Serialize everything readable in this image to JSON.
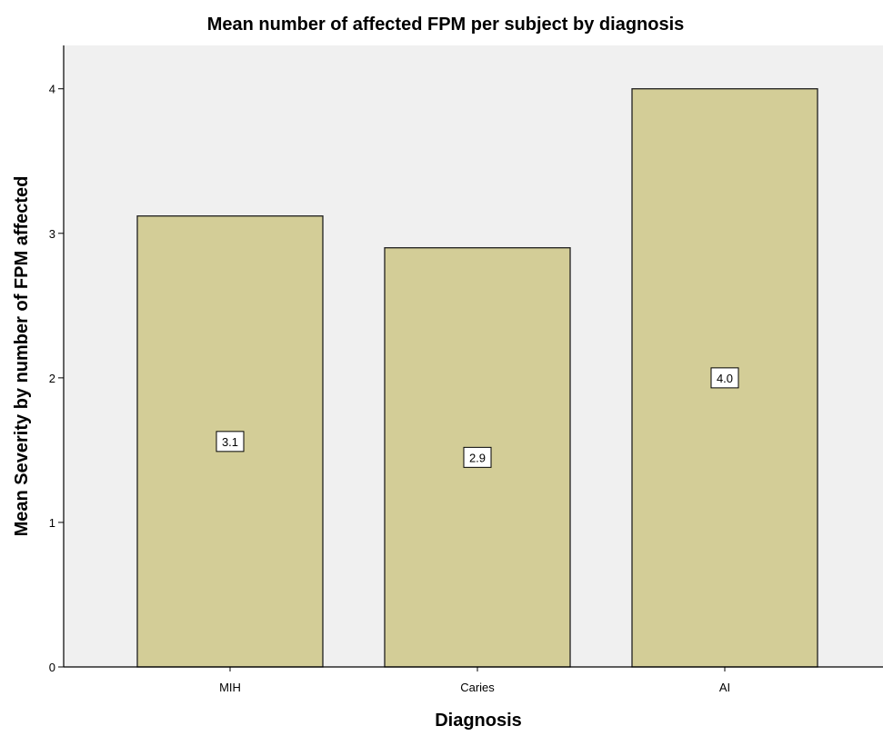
{
  "chart_data": {
    "type": "bar",
    "title": "Mean number of affected FPM per subject by diagnosis",
    "xlabel": "Diagnosis",
    "ylabel": "Mean Severity by number of FPM affected",
    "categories": [
      "MIH",
      "Caries",
      "AI"
    ],
    "values": [
      3.12,
      2.9,
      4.0
    ],
    "data_labels": [
      "3.1",
      "2.9",
      "4.0"
    ],
    "ylim": [
      0,
      4.3
    ],
    "yticks": [
      0,
      1,
      2,
      3,
      4
    ],
    "grid": false,
    "legend": "none",
    "colors": {
      "bar_fill": "#d3cd97",
      "bar_stroke": "#1f1f1f",
      "plot_background": "#f0f0f0",
      "axis": "#000000"
    }
  }
}
